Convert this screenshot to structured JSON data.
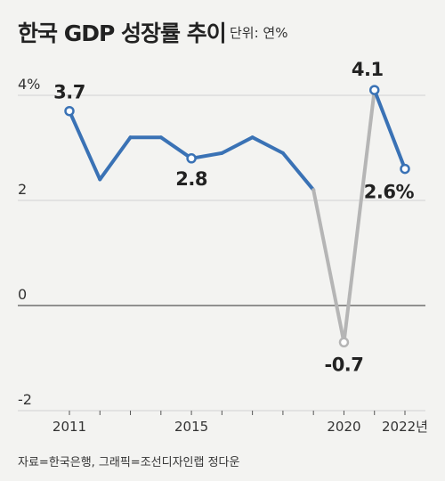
{
  "title": "한국 GDP 성장률 추이",
  "unit_label": "단위: 연%",
  "source": "자료=한국은행, 그래픽=조선디자인랩 정다운",
  "chart_data": {
    "type": "line",
    "title": "한국 GDP 성장률 추이",
    "ylabel": "",
    "xlabel": "",
    "ylim": [
      -2,
      4
    ],
    "yticks": [
      "4%",
      "2",
      "0",
      "-2"
    ],
    "yticks_values": [
      4,
      2,
      0,
      -2
    ],
    "xticks": [
      "2011",
      "2015",
      "2020",
      "2022년"
    ],
    "xticks_values": [
      2011,
      2015,
      2020,
      2022
    ],
    "grid": true,
    "series": [
      {
        "x": [
          2011,
          2012,
          2013,
          2014,
          2015,
          2016,
          2017,
          2018,
          2019,
          2020,
          2021,
          2022
        ],
        "values": [
          3.7,
          2.4,
          3.2,
          3.2,
          2.8,
          2.9,
          3.2,
          2.9,
          2.2,
          -0.7,
          4.1,
          2.6
        ]
      }
    ],
    "data_labels": [
      {
        "x": 2011,
        "text": "3.7"
      },
      {
        "x": 2015,
        "text": "2.8"
      },
      {
        "x": 2020,
        "text": "-0.7"
      },
      {
        "x": 2021,
        "text": "4.1"
      },
      {
        "x": 2022,
        "text": "2.6%"
      }
    ],
    "colors": {
      "line": "#3a72b5",
      "negative_segment": "#b5b5b5",
      "marker_fill": "#ffffff"
    }
  }
}
